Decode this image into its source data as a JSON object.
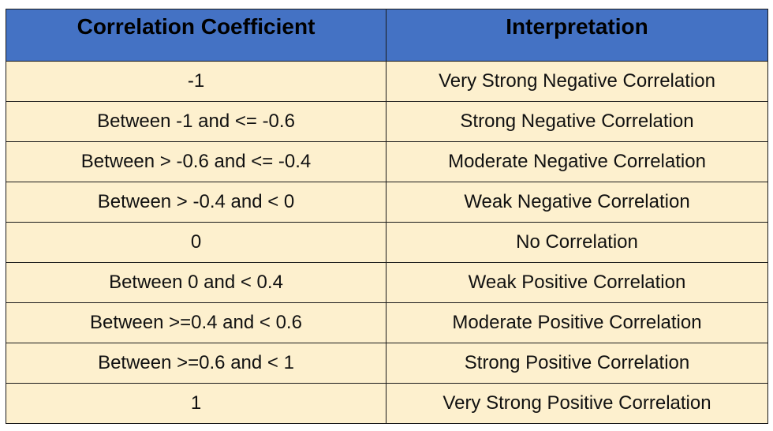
{
  "table": {
    "headers": [
      "Correlation Coefficient",
      "Interpretation"
    ],
    "rows": [
      [
        "-1",
        "Very Strong Negative Correlation"
      ],
      [
        "Between -1 and <= -0.6",
        "Strong Negative Correlation"
      ],
      [
        "Between > -0.6 and <= -0.4",
        "Moderate Negative Correlation"
      ],
      [
        "Between > -0.4 and < 0",
        "Weak Negative Correlation"
      ],
      [
        "0",
        "No Correlation"
      ],
      [
        "Between 0 and < 0.4",
        "Weak Positive Correlation"
      ],
      [
        "Between >=0.4 and < 0.6",
        "Moderate Positive Correlation"
      ],
      [
        "Between >=0.6 and < 1",
        "Strong Positive Correlation"
      ],
      [
        "1",
        "Very Strong Positive Correlation"
      ]
    ]
  },
  "colors": {
    "header_bg": "#4472c4",
    "cell_bg": "#fdf0ce",
    "border": "#1a1a1a"
  }
}
